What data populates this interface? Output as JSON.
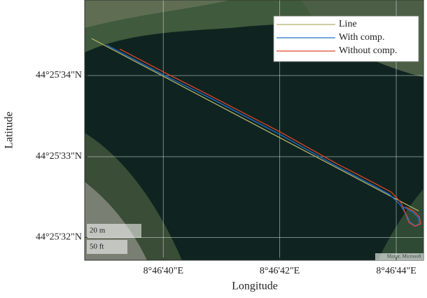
{
  "chart_data": {
    "type": "line",
    "xlabel": "Longitude",
    "ylabel": "Latitude",
    "xlim": [
      8.777403,
      8.779019
    ],
    "ylim": [
      44.425478,
      44.42637
    ],
    "xticks": [
      {
        "value": 8.777778,
        "label": "8°46'40\"E"
      },
      {
        "value": 8.778333,
        "label": "8°46'42\"E"
      },
      {
        "value": 8.778889,
        "label": "8°46'44\"E"
      }
    ],
    "yticks": [
      {
        "value": 44.425556,
        "label": "44°25'32\"N"
      },
      {
        "value": 44.425833,
        "label": "44°25'33\"N"
      },
      {
        "value": 44.426111,
        "label": "44°25'34\"N"
      }
    ],
    "grid": true,
    "legend": "upper right",
    "scale_bar_labels": [
      "20 m",
      "50 ft"
    ],
    "attribution": "Maxar, Microsoft",
    "series": [
      {
        "name": "Line",
        "color": "#b3b06a",
        "x": [
          8.777436,
          8.778996
        ],
        "values": [
          44.426238,
          44.425647
        ]
      },
      {
        "name": "With comp.",
        "color": "#1f6fd0",
        "x": [
          8.777507,
          8.777785,
          8.778002,
          8.778337,
          8.778605,
          8.778772,
          8.778856,
          8.778906,
          8.778939,
          8.778956,
          8.778979,
          8.778999,
          8.778996,
          8.778966,
          8.778922
        ],
        "values": [
          44.426216,
          44.426111,
          44.426034,
          44.425908,
          44.4258,
          44.425737,
          44.425704,
          44.42567,
          44.425632,
          44.425608,
          44.425596,
          44.425603,
          44.425623,
          44.425644,
          44.425661
        ]
      },
      {
        "name": "Without comp.",
        "color": "#e0452a",
        "x": [
          8.77757,
          8.777785,
          8.778002,
          8.778337,
          8.778605,
          8.778772,
          8.778866,
          8.778912,
          8.778933,
          8.778949,
          8.778979,
          8.779006,
          8.778999,
          8.778973,
          8.778933
        ],
        "values": [
          44.426202,
          44.426121,
          44.426042,
          44.425917,
          44.425809,
          44.425747,
          44.425711,
          44.425675,
          44.425639,
          44.425608,
          44.425594,
          44.425603,
          44.425627,
          44.425646,
          44.425661
        ]
      }
    ]
  }
}
